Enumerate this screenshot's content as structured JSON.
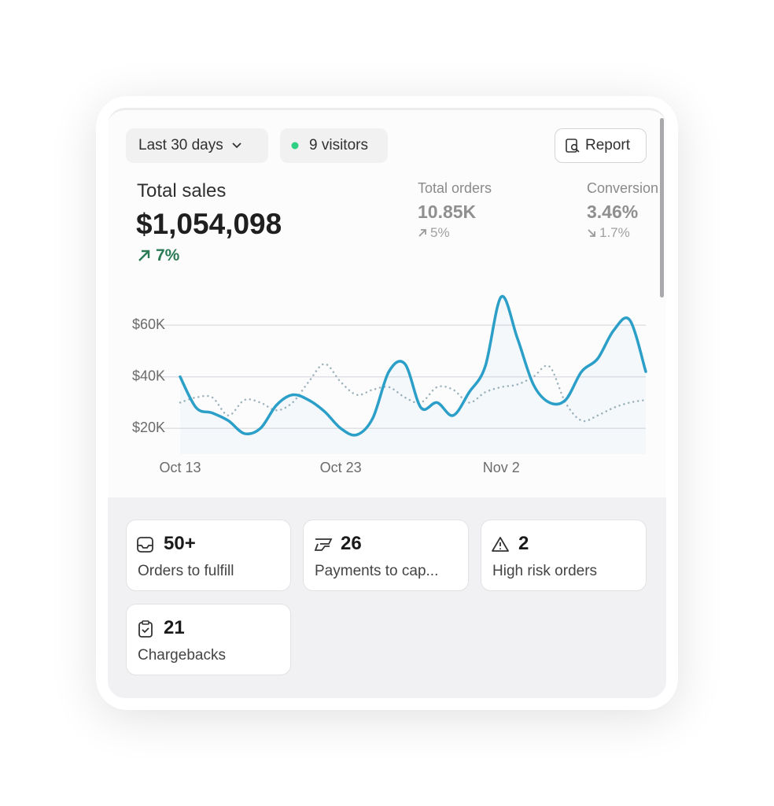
{
  "controls": {
    "date_range": "Last 30 days",
    "visitors": "9 visitors",
    "report": "Report"
  },
  "metrics": [
    {
      "label": "Total sales",
      "value": "$1,054,098",
      "change": "7%"
    },
    {
      "label": "Total orders",
      "value": "10.85K",
      "change": "5%"
    },
    {
      "label": "Conversion",
      "value": "3.46%",
      "change": "1.7%"
    }
  ],
  "chart_data": {
    "type": "line",
    "categories": [
      "Oct 13",
      null,
      null,
      null,
      null,
      null,
      null,
      null,
      null,
      null,
      "Oct 23",
      null,
      null,
      null,
      null,
      null,
      null,
      null,
      null,
      null,
      "Nov 2",
      null,
      null,
      null,
      null,
      null,
      null,
      null,
      null,
      null
    ],
    "series": [
      {
        "color": "#2b9fc8",
        "style": "solid",
        "values": [
          40000,
          28000,
          26000,
          23000,
          18000,
          20000,
          29000,
          33000,
          31000,
          26500,
          20000,
          17500,
          24000,
          42000,
          45000,
          28000,
          30000,
          25000,
          34000,
          44000,
          71000,
          55000,
          37000,
          30000,
          31000,
          42000,
          47000,
          58000,
          62000,
          42000
        ]
      },
      {
        "color": "#9fb4bb",
        "style": "dotted",
        "values": [
          30000,
          32000,
          32000,
          25000,
          31000,
          30000,
          27000,
          30000,
          38000,
          45000,
          38000,
          33000,
          35000,
          36000,
          32000,
          30000,
          36000,
          35000,
          30000,
          34000,
          36000,
          37000,
          40000,
          44000,
          30000,
          23000,
          25000,
          28000,
          30000,
          31000
        ]
      }
    ],
    "ylim": [
      10000,
      75000
    ],
    "yticks": [
      {
        "value": 20000,
        "label": "$20K"
      },
      {
        "value": 40000,
        "label": "$40K"
      },
      {
        "value": 60000,
        "label": "$60K"
      }
    ],
    "grid": true
  },
  "tiles": [
    {
      "count": "50+",
      "label": "Orders to fulfill"
    },
    {
      "count": "26",
      "label": "Payments to cap..."
    },
    {
      "count": "2",
      "label": "High risk orders"
    },
    {
      "count": "21",
      "label": "Chargebacks"
    }
  ]
}
